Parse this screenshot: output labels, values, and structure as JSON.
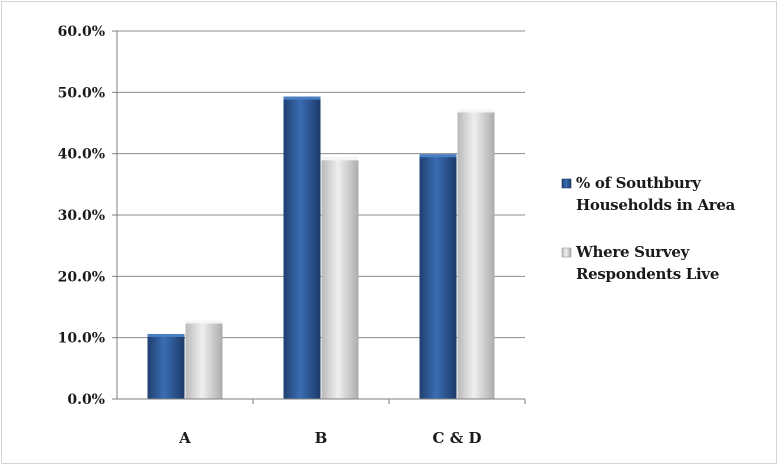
{
  "chart_data": {
    "type": "bar",
    "title": "",
    "xlabel": "",
    "ylabel": "",
    "categories": [
      "A",
      "B",
      "C & D"
    ],
    "series": [
      {
        "name": "% of Southbury Households in Area",
        "name_lines": [
          "% of Southbury",
          "Households in Area"
        ],
        "values": [
          10.6,
          49.3,
          39.9
        ],
        "color": "#2c5a9a"
      },
      {
        "name": "Where Survey Respondents Live",
        "name_lines": [
          "Where Survey",
          "Respondents Live"
        ],
        "values": [
          12.8,
          39.4,
          47.2
        ],
        "color": "#d4d4d4"
      }
    ],
    "ylim": [
      0,
      60
    ],
    "yticks": [
      "0.0%",
      "10.0%",
      "20.0%",
      "30.0%",
      "40.0%",
      "50.0%",
      "60.0%"
    ],
    "ytick_values": [
      0,
      10,
      20,
      30,
      40,
      50,
      60
    ],
    "grid": true,
    "legend_position": "right"
  }
}
